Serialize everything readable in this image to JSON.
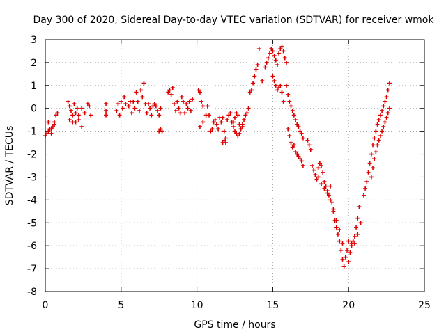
{
  "chart_data": {
    "type": "scatter",
    "title": "Day 300 of 2020, Sidereal Day-to-day VTEC variation (SDTVAR) for receiver wmok",
    "xlabel": "GPS time / hours",
    "ylabel": "SDTVAR / TECUs",
    "xlim": [
      0,
      25
    ],
    "ylim": [
      -8,
      3
    ],
    "xticks": [
      "0",
      "5",
      "10",
      "15",
      "20",
      "25"
    ],
    "yticks": [
      "-8",
      "-7",
      "-6",
      "-5",
      "-4",
      "-3",
      "-2",
      "-1",
      "0",
      "1",
      "2",
      "3"
    ],
    "grid": true,
    "marker": "plus",
    "color": "#e00000",
    "series": [
      {
        "name": "SDTVAR",
        "x": [
          0.0,
          0.1,
          0.2,
          0.3,
          0.4,
          0.5,
          0.6,
          0.7,
          0.8,
          0.2,
          0.4,
          0.6,
          1.5,
          1.6,
          1.7,
          1.8,
          1.9,
          2.0,
          2.1,
          2.2,
          1.6,
          1.8,
          2.0,
          2.2,
          2.4,
          2.4,
          2.6,
          2.8,
          2.9,
          3.0,
          4.0,
          4.0,
          4.0,
          4.7,
          4.8,
          4.9,
          5.0,
          5.1,
          5.2,
          5.3,
          5.5,
          5.6,
          5.7,
          5.8,
          5.9,
          6.0,
          6.1,
          6.2,
          6.3,
          6.4,
          6.5,
          6.6,
          6.7,
          6.8,
          6.9,
          7.0,
          7.1,
          7.2,
          7.3,
          7.4,
          7.5,
          7.6,
          7.5,
          7.6,
          7.7,
          8.1,
          8.2,
          8.3,
          8.4,
          8.5,
          8.6,
          8.7,
          8.8,
          8.9,
          9.0,
          9.1,
          9.2,
          9.3,
          9.4,
          9.5,
          9.6,
          9.7,
          10.1,
          10.2,
          10.3,
          10.4,
          10.2,
          10.4,
          10.6,
          10.7,
          10.8,
          10.9,
          11.0,
          11.1,
          11.2,
          11.3,
          11.4,
          11.5,
          11.6,
          11.7,
          11.8,
          11.9,
          11.7,
          11.8,
          11.9,
          12.0,
          12.1,
          12.2,
          12.3,
          12.4,
          12.5,
          12.6,
          12.7,
          12.8,
          12.9,
          13.0,
          13.1,
          13.2,
          13.3,
          13.4,
          12.4,
          12.5,
          12.6,
          12.7,
          12.8,
          12.9,
          13.0,
          13.5,
          13.6,
          13.7,
          13.8,
          13.9,
          14.0,
          14.1,
          14.3,
          14.5,
          14.6,
          14.7,
          14.8,
          14.9,
          15.0,
          15.1,
          15.2,
          15.3,
          15.4,
          15.5,
          15.6,
          15.7,
          15.8,
          15.9,
          15.0,
          15.1,
          15.2,
          15.3,
          15.4,
          15.5,
          15.6,
          15.7,
          15.9,
          16.0,
          16.1,
          16.2,
          16.3,
          16.4,
          16.5,
          16.6,
          16.7,
          16.8,
          16.9,
          17.0,
          16.0,
          16.1,
          16.2,
          16.3,
          16.4,
          16.5,
          16.6,
          16.7,
          16.8,
          16.9,
          17.0,
          17.3,
          17.4,
          17.5,
          17.6,
          17.7,
          17.8,
          17.9,
          18.0,
          18.1,
          18.2,
          18.3,
          18.4,
          18.5,
          18.6,
          18.7,
          18.8,
          18.9,
          19.0,
          19.1,
          19.2,
          19.3,
          19.4,
          19.5,
          19.6,
          19.7,
          19.8,
          19.9,
          18.0,
          18.2,
          18.4,
          18.6,
          18.8,
          19.0,
          19.2,
          19.4,
          19.6,
          19.8,
          20.0,
          20.1,
          20.2,
          20.3,
          20.4,
          20.5,
          20.6,
          20.7,
          20.0,
          20.2,
          20.4,
          20.6,
          20.8,
          21.0,
          21.1,
          21.2,
          21.3,
          21.4,
          21.5,
          21.6,
          21.7,
          21.8,
          21.9,
          22.0,
          22.1,
          22.2,
          22.3,
          22.4,
          22.5,
          22.6,
          22.7,
          21.5,
          21.6,
          21.7,
          21.8,
          21.9,
          22.0,
          22.1,
          22.2,
          22.3,
          22.4,
          22.5,
          22.6,
          22.7
        ],
        "y": [
          -1.2,
          -1.1,
          -1.0,
          -0.9,
          -1.1,
          -0.8,
          -0.6,
          -0.3,
          -0.2,
          -0.6,
          -0.9,
          -0.7,
          0.3,
          0.1,
          -0.1,
          -0.3,
          0.2,
          -0.2,
          0.0,
          -0.3,
          -0.5,
          -0.6,
          -0.6,
          -0.5,
          -0.8,
          0.0,
          -0.2,
          0.2,
          0.1,
          -0.3,
          0.2,
          -0.1,
          -0.3,
          -0.1,
          0.2,
          -0.3,
          0.3,
          0.0,
          0.5,
          0.2,
          0.1,
          0.3,
          -0.2,
          0.3,
          0.0,
          0.7,
          0.3,
          -0.1,
          0.8,
          0.5,
          1.1,
          0.2,
          -0.2,
          0.2,
          0.0,
          -0.3,
          0.1,
          0.2,
          0.1,
          -0.1,
          -0.3,
          0.0,
          -1.0,
          -0.9,
          -1.0,
          0.7,
          0.8,
          0.6,
          0.9,
          0.2,
          -0.1,
          0.3,
          0.0,
          -0.2,
          0.5,
          0.3,
          -0.2,
          0.2,
          0.0,
          0.3,
          -0.1,
          0.4,
          0.8,
          0.7,
          0.3,
          0.1,
          -0.8,
          -0.6,
          -0.3,
          0.1,
          -0.3,
          -1.0,
          -0.9,
          -0.6,
          -0.5,
          -0.7,
          -0.9,
          -0.4,
          -0.6,
          -0.4,
          -1.0,
          -1.3,
          -1.5,
          -1.4,
          -1.5,
          -0.5,
          -0.3,
          -0.2,
          -0.6,
          -0.8,
          -1.0,
          -1.1,
          -1.2,
          -1.1,
          -0.9,
          -0.7,
          -0.5,
          -0.3,
          -0.2,
          0.0,
          -0.6,
          -0.4,
          -0.2,
          -0.3,
          -0.7,
          -0.9,
          -0.8,
          0.7,
          0.8,
          1.1,
          1.4,
          1.7,
          1.9,
          2.6,
          1.2,
          1.8,
          2.0,
          2.2,
          2.4,
          2.6,
          2.5,
          2.3,
          2.1,
          1.9,
          2.4,
          2.6,
          2.7,
          2.5,
          2.2,
          2.0,
          1.4,
          1.2,
          1.0,
          0.8,
          0.9,
          1.0,
          0.7,
          0.3,
          1.0,
          0.6,
          0.3,
          0.1,
          -0.1,
          -0.3,
          -0.5,
          -0.7,
          -0.8,
          -1.0,
          -1.1,
          -1.3,
          -0.9,
          -1.2,
          -1.5,
          -1.7,
          -1.6,
          -1.9,
          -2.0,
          -2.1,
          -2.2,
          -2.3,
          -2.5,
          -1.4,
          -1.6,
          -1.8,
          -2.5,
          -2.7,
          -2.9,
          -3.1,
          -2.6,
          -2.4,
          -2.5,
          -2.8,
          -3.2,
          -3.4,
          -3.6,
          -3.8,
          -4.0,
          -4.1,
          -4.5,
          -4.9,
          -5.2,
          -5.5,
          -5.8,
          -6.2,
          -6.6,
          -6.9,
          -6.5,
          -6.2,
          -3.0,
          -3.3,
          -3.5,
          -3.7,
          -3.4,
          -4.4,
          -4.9,
          -5.3,
          -5.9,
          -6.5,
          -6.7,
          -6.3,
          -5.9,
          -5.8,
          -5.6,
          -5.2,
          -4.8,
          -4.3,
          -5.8,
          -6.0,
          -5.9,
          -5.5,
          -5.0,
          -3.8,
          -3.5,
          -3.2,
          -2.8,
          -2.4,
          -2.0,
          -1.6,
          -1.3,
          -1.0,
          -0.7,
          -0.5,
          -0.3,
          -0.1,
          0.1,
          0.3,
          0.5,
          0.8,
          1.1,
          -3.0,
          -2.6,
          -2.2,
          -1.9,
          -1.6,
          -1.4,
          -1.2,
          -1.0,
          -0.8,
          -0.6,
          -0.4,
          -0.2,
          0.0
        ]
      }
    ]
  }
}
